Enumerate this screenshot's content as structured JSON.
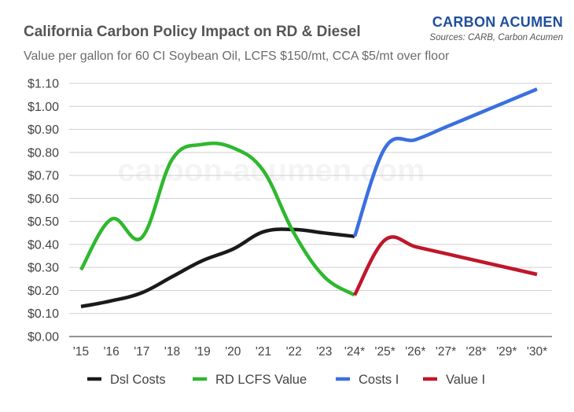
{
  "header": {
    "title": "California Carbon Policy Impact on RD & Diesel",
    "subtitle": "Value per gallon for 60 CI Soybean Oil, LCFS $150/mt, CCA $5/mt over floor",
    "brand": "CARBON ACUMEN",
    "sources": "Sources: CARB, Carbon Acumen"
  },
  "watermark": "carbon-acumen.com",
  "chart_data": {
    "type": "line",
    "title": "California Carbon Policy Impact on RD & Diesel",
    "subtitle": "Value per gallon for 60 CI Soybean Oil, LCFS $150/mt, CCA $5/mt over floor",
    "xlabel": "",
    "ylabel": "",
    "categories": [
      "'15",
      "'16",
      "'17",
      "'18",
      "'19",
      "'20",
      "'21",
      "'22",
      "'23",
      "'24*",
      "'25*",
      "'26*",
      "'27*",
      "'28*",
      "'29*",
      "'30*"
    ],
    "ylim": [
      0,
      1.1
    ],
    "yticks": [
      "$0.00",
      "$0.10",
      "$0.20",
      "$0.30",
      "$0.40",
      "$0.50",
      "$0.60",
      "$0.70",
      "$0.80",
      "$0.90",
      "$1.00",
      "$1.10"
    ],
    "grid": true,
    "legend_position": "bottom",
    "series": [
      {
        "name": "Dsl Costs",
        "color": "#1a1a1a",
        "x": [
          0,
          1,
          2,
          3,
          4,
          5,
          6,
          7,
          8,
          9
        ],
        "values": [
          0.13,
          0.155,
          0.19,
          0.26,
          0.33,
          0.38,
          0.455,
          0.465,
          0.45,
          0.435
        ]
      },
      {
        "name": "RD LCFS Value",
        "color": "#2eb82e",
        "x": [
          0,
          1,
          2,
          3,
          4,
          5,
          6,
          7,
          8,
          9
        ],
        "values": [
          0.29,
          0.51,
          0.43,
          0.77,
          0.835,
          0.82,
          0.72,
          0.45,
          0.26,
          0.18
        ]
      },
      {
        "name": "Costs I",
        "color": "#3b6fe0",
        "x": [
          9,
          10,
          11,
          12,
          13,
          14,
          15
        ],
        "values": [
          0.435,
          0.82,
          0.855,
          0.91,
          0.965,
          1.02,
          1.075
        ]
      },
      {
        "name": "Value I",
        "color": "#c0162b",
        "x": [
          9,
          10,
          11,
          12,
          13,
          14,
          15
        ],
        "values": [
          0.18,
          0.42,
          0.39,
          0.36,
          0.33,
          0.3,
          0.27
        ]
      }
    ]
  }
}
